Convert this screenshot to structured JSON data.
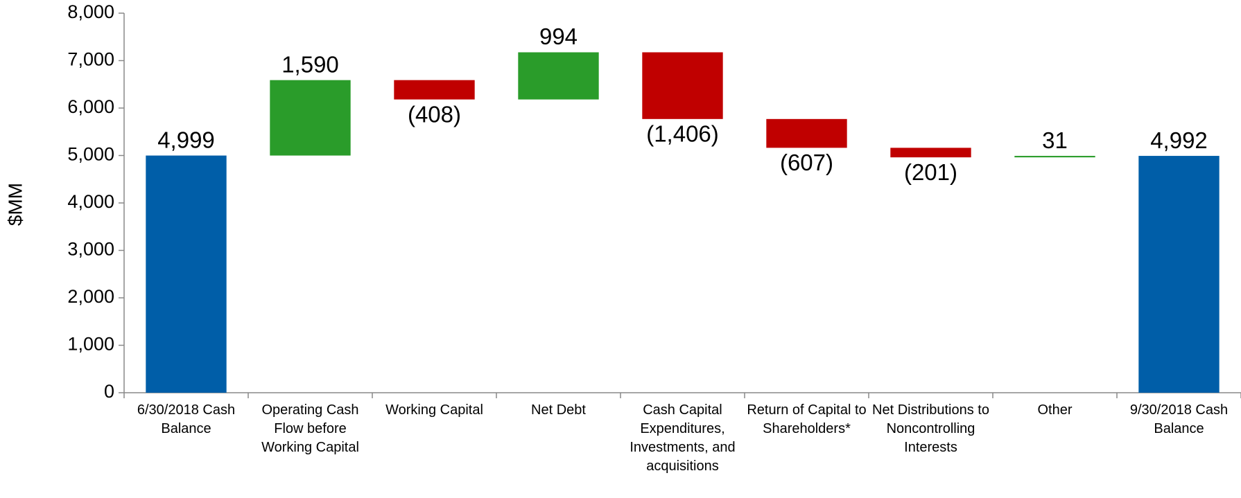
{
  "chart_data": {
    "type": "waterfall",
    "y_label": "$MM",
    "categories": [
      "6/30/2018 Cash Balance",
      "Operating Cash Flow before Working Capital",
      "Working Capital",
      "Net Debt",
      "Cash Capital Expenditures, Investments, and acquisitions",
      "Return of Capital to Shareholders*",
      "Net Distributions to Noncontrolling Interests",
      "Other",
      "9/30/2018 Cash Balance"
    ],
    "values": [
      4999,
      1590,
      -408,
      994,
      -1406,
      -607,
      -201,
      31,
      4992
    ],
    "value_labels": [
      "4,999",
      "1,590",
      "(408)",
      "994",
      "(1,406)",
      "(607)",
      "(201)",
      "31",
      "4,992"
    ],
    "totals": [
      true,
      false,
      false,
      false,
      false,
      false,
      false,
      false,
      true
    ],
    "colors": {
      "total": "#005ea8",
      "increase": "#2a9c2a",
      "decrease": "#c00000"
    },
    "ylim": [
      0,
      8000
    ],
    "yticks": [
      0,
      {
        "value": 1000,
        "label": "1,000"
      },
      {
        "value": 2000,
        "label": "2,000"
      },
      {
        "value": 3000,
        "label": "3,000"
      },
      {
        "value": 4000,
        "label": "4,000"
      },
      {
        "value": 5000,
        "label": "5,000"
      },
      {
        "value": 6000,
        "label": "6,000"
      },
      {
        "value": 7000,
        "label": "7,000"
      },
      {
        "value": 8000,
        "label": "8,000"
      }
    ]
  }
}
